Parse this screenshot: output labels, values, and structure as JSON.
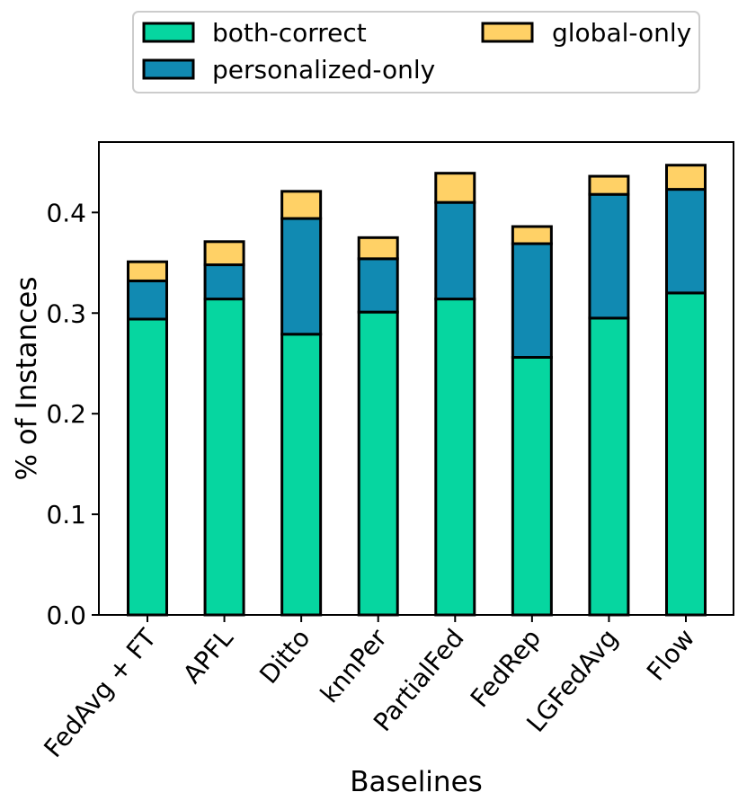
{
  "chart_data": {
    "type": "bar",
    "stacked": true,
    "categories": [
      "FedAvg + FT",
      "APFL",
      "Ditto",
      "knnPer",
      "PartialFed",
      "FedRep",
      "LGFedAvg",
      "Flow"
    ],
    "series": [
      {
        "name": "both-correct",
        "color": "#06D6A0",
        "values": [
          0.294,
          0.314,
          0.279,
          0.301,
          0.314,
          0.256,
          0.295,
          0.32
        ]
      },
      {
        "name": "personalized-only",
        "color": "#118AB2",
        "values": [
          0.038,
          0.034,
          0.115,
          0.053,
          0.096,
          0.113,
          0.123,
          0.103
        ]
      },
      {
        "name": "global-only",
        "color": "#FFD166",
        "values": [
          0.019,
          0.023,
          0.027,
          0.021,
          0.029,
          0.017,
          0.018,
          0.024
        ]
      }
    ],
    "xlabel": "Baselines",
    "ylabel": "% of Instances",
    "ylim": [
      0,
      0.47
    ],
    "yticks": [
      0.0,
      0.1,
      0.2,
      0.3,
      0.4
    ],
    "ytick_labels": [
      "0.0",
      "0.1",
      "0.2",
      "0.3",
      "0.4"
    ],
    "legend": {
      "placement": "top-center-above-plot",
      "columns": 2,
      "entries": [
        "both-correct",
        "personalized-only",
        "global-only"
      ]
    },
    "grid": false
  }
}
